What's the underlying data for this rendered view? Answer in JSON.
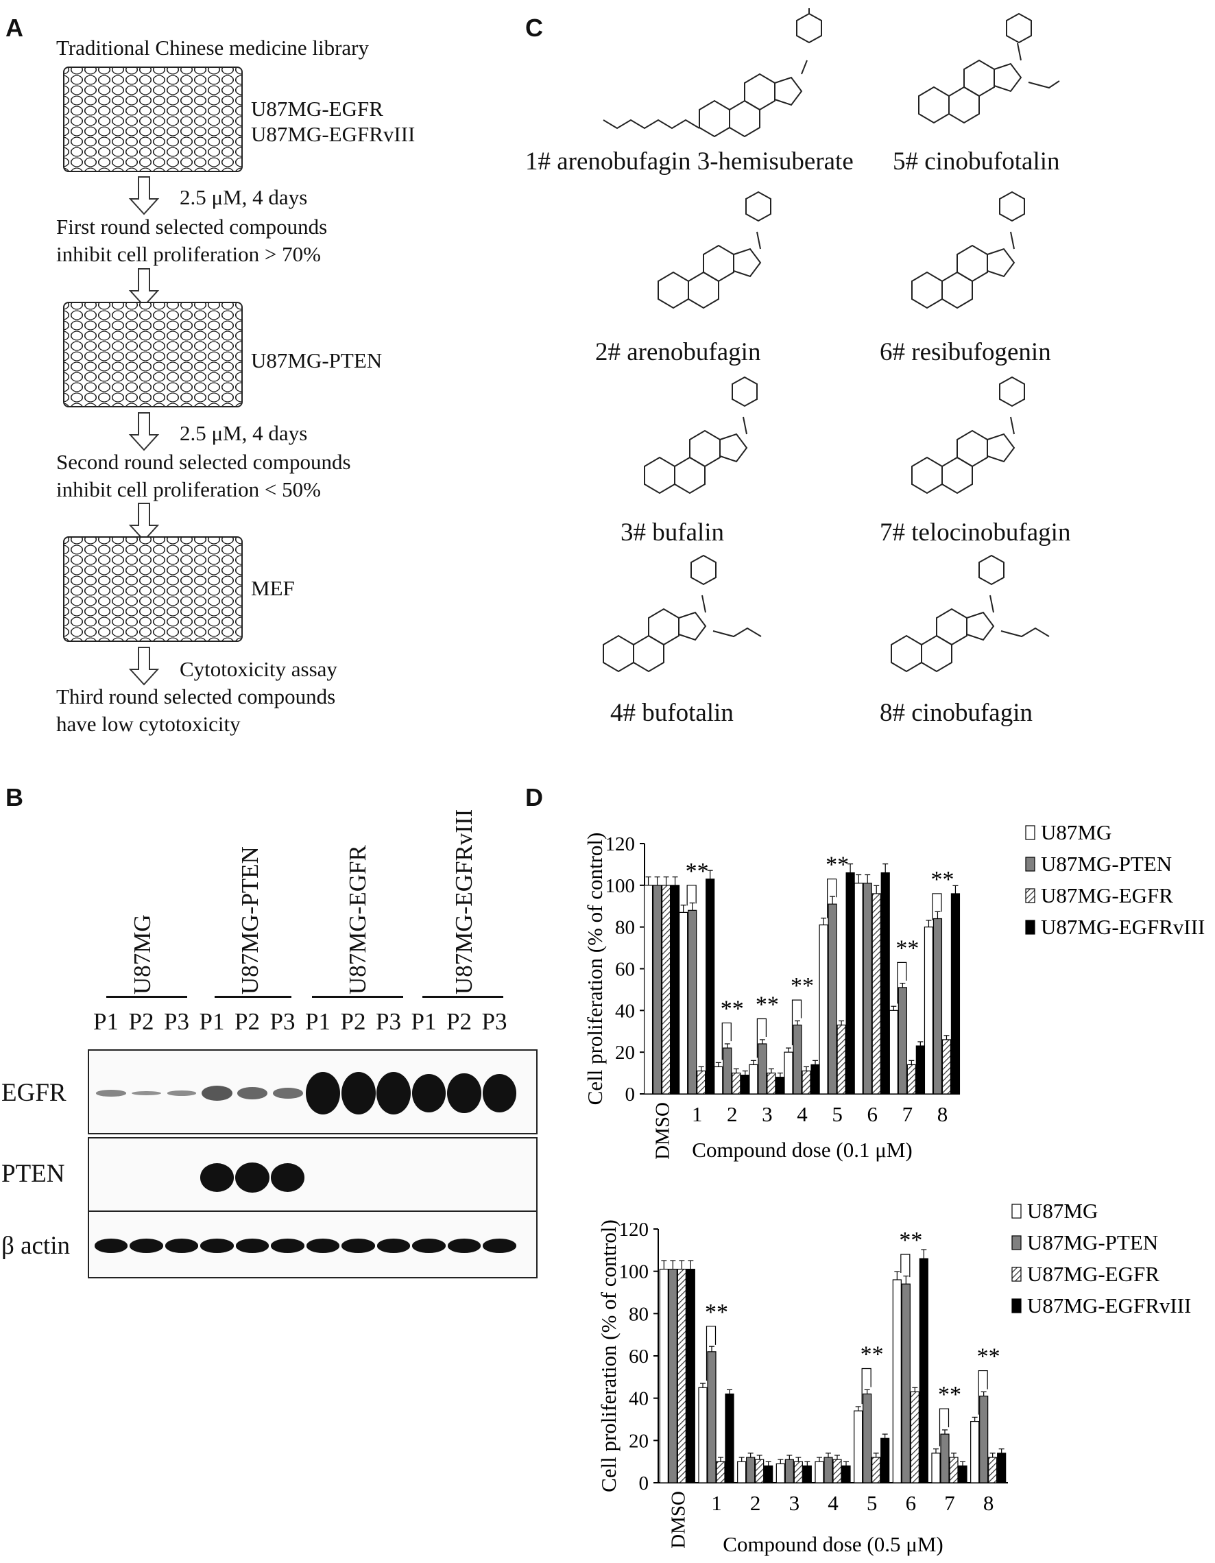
{
  "panel_labels": {
    "a": "A",
    "b": "B",
    "c": "C",
    "d": "D"
  },
  "screening": {
    "library": "Traditional Chinese medicine library",
    "plate1_lines": [
      "U87MG-EGFR",
      "U87MG-EGFRvIII"
    ],
    "step1_condition": "2.5 μM, 4 days",
    "round1": [
      "First round selected compounds",
      "inhibit cell proliferation > 70%"
    ],
    "plate2_line": "U87MG-PTEN",
    "step2_condition": "2.5 μM, 4 days",
    "round2": [
      "Second round selected compounds",
      "inhibit cell proliferation < 50%"
    ],
    "plate3_line": "MEF",
    "step3_condition": "Cytotoxicity assay",
    "round3": [
      "Third round selected compounds",
      "have low cytotoxicity"
    ]
  },
  "compounds": [
    "1# arenobufagin 3-hemisuberate",
    "2# arenobufagin",
    "3# bufalin",
    "4# bufotalin",
    "5# cinobufotalin",
    "6# resibufogenin",
    "7# telocinobufagin",
    "8# cinobufagin"
  ],
  "western": {
    "cell_lines": [
      "U87MG",
      "U87MG-PTEN",
      "U87MG-EGFR",
      "U87MG-EGFRvIII"
    ],
    "lanes": [
      "P1",
      "P2",
      "P3",
      "P1",
      "P2",
      "P3",
      "P1",
      "P2",
      "P3",
      "P1",
      "P2",
      "P3"
    ],
    "rows": [
      "EGFR",
      "PTEN",
      "β actin"
    ],
    "egfr_intensity": [
      0.15,
      0.1,
      0.12,
      0.35,
      0.28,
      0.25,
      1,
      1,
      1,
      0.9,
      0.95,
      0.9
    ],
    "pten_intensity": [
      0,
      0,
      0,
      0.95,
      1,
      0.95,
      0,
      0,
      0,
      0,
      0,
      0
    ],
    "actin_intensity": [
      0.85,
      0.85,
      0.85,
      0.85,
      0.85,
      0.85,
      0.85,
      0.85,
      0.85,
      0.85,
      0.85,
      0.85
    ]
  },
  "chart_data": [
    {
      "type": "bar",
      "categories": [
        "DMSO",
        "1",
        "2",
        "3",
        "4",
        "5",
        "6",
        "7",
        "8"
      ],
      "xlabel": "Compound dose (0.1 μM)",
      "ylabel": "Cell proliferation (% of control)",
      "ylim": [
        0,
        120
      ],
      "yticks": [
        0,
        20,
        40,
        60,
        80,
        100,
        120
      ],
      "legend_position": "top-right",
      "significance": "**",
      "significant_categories": [
        "1",
        "2",
        "3",
        "4",
        "5",
        "7",
        "8"
      ],
      "series": [
        {
          "name": "U87MG",
          "fill": "#ffffff",
          "values": [
            100,
            87,
            13,
            14,
            20,
            81,
            101,
            40,
            80
          ]
        },
        {
          "name": "U87MG-PTEN",
          "fill": "#808080",
          "values": [
            100,
            88,
            22,
            24,
            33,
            91,
            101,
            51,
            84
          ]
        },
        {
          "name": "U87MG-EGFR",
          "fill": "hatch",
          "values": [
            100,
            11,
            10,
            10,
            11,
            33,
            96,
            14,
            26
          ]
        },
        {
          "name": "U87MG-EGFRvIII",
          "fill": "#000000",
          "values": [
            100,
            103,
            9,
            8,
            14,
            106,
            106,
            23,
            96
          ]
        }
      ]
    },
    {
      "type": "bar",
      "categories": [
        "DMSO",
        "1",
        "2",
        "3",
        "4",
        "5",
        "6",
        "7",
        "8"
      ],
      "xlabel": "Compound dose (0.5 μM)",
      "ylabel": "Cell proliferation (% of control)",
      "ylim": [
        0,
        120
      ],
      "yticks": [
        0,
        20,
        40,
        60,
        80,
        100,
        120
      ],
      "legend_position": "top-right",
      "significance": "**",
      "significant_categories": [
        "1",
        "5",
        "6",
        "7",
        "8"
      ],
      "series": [
        {
          "name": "U87MG",
          "fill": "#ffffff",
          "values": [
            101,
            45,
            10,
            9,
            10,
            34,
            96,
            14,
            29
          ]
        },
        {
          "name": "U87MG-PTEN",
          "fill": "#808080",
          "values": [
            101,
            62,
            12,
            11,
            12,
            42,
            94,
            23,
            41
          ]
        },
        {
          "name": "U87MG-EGFR",
          "fill": "hatch",
          "values": [
            101,
            10,
            11,
            10,
            11,
            12,
            43,
            12,
            12
          ]
        },
        {
          "name": "U87MG-EGFRvIII",
          "fill": "#000000",
          "values": [
            101,
            42,
            8,
            8,
            8,
            21,
            106,
            8,
            14
          ]
        }
      ]
    }
  ]
}
